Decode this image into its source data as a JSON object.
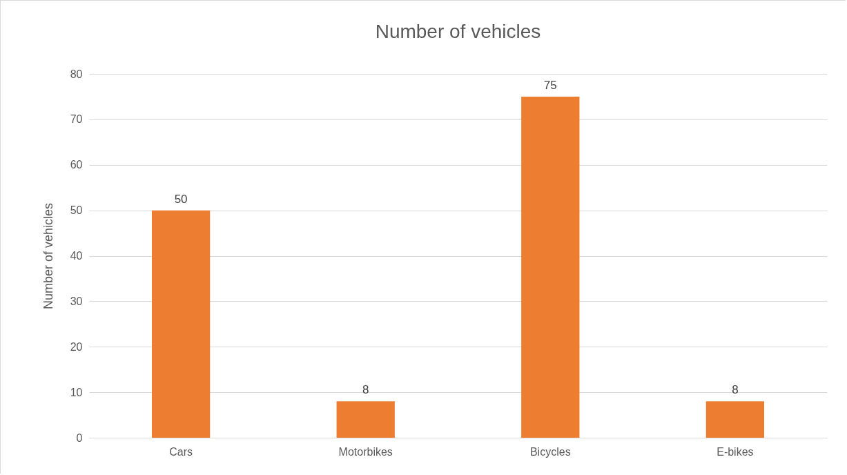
{
  "chart_data": {
    "type": "bar",
    "title": "Number of vehicles",
    "ylabel": "Number of vehicles",
    "categories": [
      "Cars",
      "Motorbikes",
      "Bicycles",
      "E-bikes"
    ],
    "values": [
      50,
      8,
      75,
      8
    ],
    "color": "#ed7d31",
    "ylim": [
      0,
      80
    ],
    "yticks": [
      0,
      10,
      20,
      30,
      40,
      50,
      60,
      70,
      80
    ],
    "grid": "y",
    "data_labels": true
  }
}
